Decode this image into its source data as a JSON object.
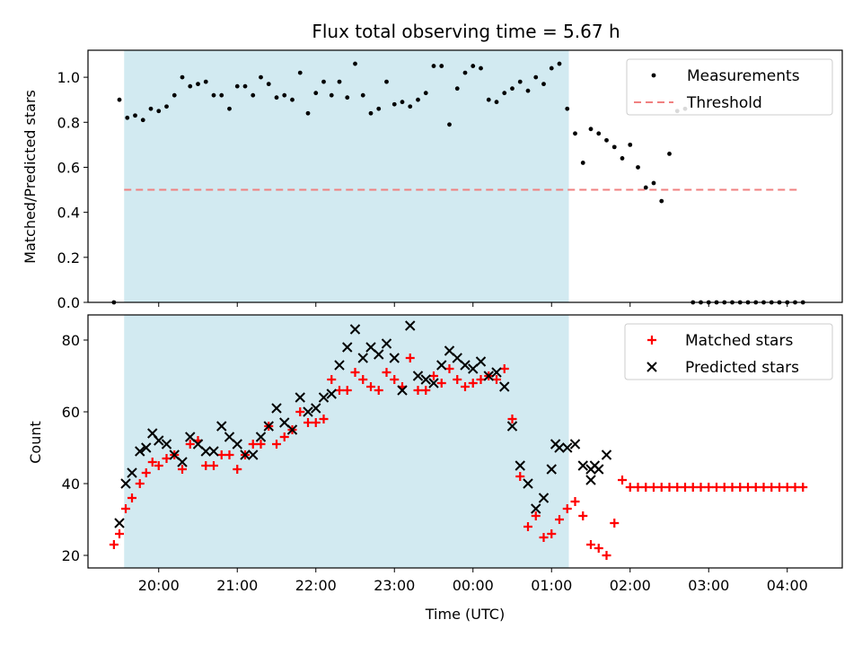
{
  "chart_data": {
    "title": "Flux total observing time = 5.67 h",
    "xlabel": "Time (UTC)",
    "x_ticks": [
      "20:00",
      "21:00",
      "22:00",
      "23:00",
      "00:00",
      "01:00",
      "02:00",
      "03:00",
      "04:00"
    ],
    "x_tick_hours": [
      0.5,
      1.5,
      2.5,
      3.5,
      4.5,
      5.5,
      6.5,
      7.5,
      8.5
    ],
    "xlim": [
      -0.4,
      9.2
    ],
    "shaded_region": {
      "start": 0.06,
      "end": 5.72,
      "color": "#add8e6"
    },
    "panels": [
      {
        "type": "scatter",
        "ylabel": "Matched/Predicted stars",
        "ylim": [
          0,
          1.12
        ],
        "y_ticks": [
          "0.0",
          "0.2",
          "0.4",
          "0.6",
          "0.8",
          "1.0"
        ],
        "y_tick_values": [
          0,
          0.2,
          0.4,
          0.6,
          0.8,
          1.0
        ],
        "threshold": {
          "label": "Threshold",
          "value": 0.5,
          "x_start": 0.06,
          "x_end": 8.65,
          "color": "#f08080"
        },
        "legend": {
          "position": "upper right",
          "entries": [
            "Measurements",
            "Threshold"
          ]
        },
        "series": [
          {
            "name": "Measurements",
            "marker": "dot",
            "color": "#000000",
            "x": [
              -0.07,
              0.0,
              0.1,
              0.2,
              0.3,
              0.4,
              0.5,
              0.6,
              0.7,
              0.8,
              0.9,
              1.0,
              1.1,
              1.2,
              1.3,
              1.4,
              1.5,
              1.6,
              1.7,
              1.8,
              1.9,
              2.0,
              2.1,
              2.2,
              2.3,
              2.4,
              2.5,
              2.6,
              2.7,
              2.8,
              2.9,
              3.0,
              3.1,
              3.2,
              3.3,
              3.4,
              3.5,
              3.6,
              3.7,
              3.8,
              3.9,
              4.0,
              4.1,
              4.2,
              4.3,
              4.4,
              4.5,
              4.6,
              4.7,
              4.8,
              4.9,
              5.0,
              5.1,
              5.2,
              5.3,
              5.4,
              5.5,
              5.6,
              5.7,
              5.8,
              5.9,
              6.0,
              6.1,
              6.2,
              6.3,
              6.4,
              6.5,
              6.6,
              6.7,
              6.8,
              6.9,
              7.0,
              7.1,
              7.2,
              7.3,
              7.4,
              7.5,
              7.6,
              7.7,
              7.8,
              7.9,
              8.0,
              8.1,
              8.2,
              8.3,
              8.4,
              8.5,
              8.6,
              8.7
            ],
            "y": [
              0.0,
              0.9,
              0.82,
              0.83,
              0.81,
              0.86,
              0.85,
              0.87,
              0.92,
              1.0,
              0.96,
              0.97,
              0.98,
              0.92,
              0.92,
              0.86,
              0.96,
              0.96,
              0.92,
              1.0,
              0.97,
              0.91,
              0.92,
              0.9,
              1.02,
              0.84,
              0.93,
              0.98,
              0.92,
              0.98,
              0.91,
              1.06,
              0.92,
              0.84,
              0.86,
              0.98,
              0.88,
              0.89,
              0.87,
              0.9,
              0.93,
              1.05,
              1.05,
              0.79,
              0.95,
              1.02,
              1.05,
              1.04,
              0.9,
              0.89,
              0.93,
              0.95,
              0.98,
              0.94,
              1.0,
              0.97,
              1.04,
              1.06,
              0.86,
              0.75,
              0.62,
              0.77,
              0.75,
              0.72,
              0.69,
              0.64,
              0.7,
              0.6,
              0.51,
              0.53,
              0.45,
              0.66,
              0.85,
              0.86,
              0.0,
              0.0,
              0.0,
              0.0,
              0.0,
              0.0,
              0.0,
              0.0,
              0.0,
              0.0,
              0.0,
              0.0,
              0.0,
              0.0,
              0.0
            ]
          }
        ]
      },
      {
        "type": "scatter",
        "ylabel": "Count",
        "ylim": [
          16.5,
          87
        ],
        "y_ticks": [
          "20",
          "40",
          "60",
          "80"
        ],
        "y_tick_values": [
          20,
          40,
          60,
          80
        ],
        "legend": {
          "position": "upper right",
          "entries": [
            "Matched stars",
            "Predicted stars"
          ]
        },
        "series": [
          {
            "name": "Matched stars",
            "marker": "plus",
            "color": "#ff0000",
            "x": [
              -0.07,
              0.0,
              0.08,
              0.16,
              0.26,
              0.34,
              0.42,
              0.5,
              0.6,
              0.7,
              0.8,
              0.9,
              1.0,
              1.1,
              1.2,
              1.3,
              1.4,
              1.5,
              1.6,
              1.7,
              1.8,
              1.9,
              2.0,
              2.1,
              2.2,
              2.3,
              2.4,
              2.5,
              2.6,
              2.7,
              2.8,
              2.9,
              3.0,
              3.1,
              3.2,
              3.3,
              3.4,
              3.5,
              3.6,
              3.7,
              3.8,
              3.9,
              4.0,
              4.1,
              4.2,
              4.3,
              4.4,
              4.5,
              4.6,
              4.7,
              4.8,
              4.9,
              5.0,
              5.1,
              5.2,
              5.3,
              5.4,
              5.5,
              5.6,
              5.7,
              5.8,
              5.9,
              6.0,
              6.1,
              6.2,
              6.3,
              6.4,
              6.5,
              6.6,
              6.7,
              6.8,
              6.9,
              7.0,
              7.1,
              7.2,
              7.3,
              7.4,
              7.5,
              7.6,
              7.7,
              7.8,
              7.9,
              8.0,
              8.1,
              8.2,
              8.3,
              8.4,
              8.5,
              8.6,
              8.7
            ],
            "y": [
              23,
              26,
              33,
              36,
              40,
              43,
              46,
              45,
              47,
              48,
              44,
              51,
              52,
              45,
              45,
              48,
              48,
              44,
              48,
              51,
              51,
              56,
              51,
              53,
              55,
              60,
              57,
              57,
              58,
              69,
              66,
              66,
              71,
              69,
              67,
              66,
              71,
              69,
              67,
              75,
              66,
              66,
              70,
              68,
              72,
              69,
              67,
              68,
              69,
              70,
              69,
              72,
              58,
              42,
              28,
              31,
              25,
              26,
              30,
              33,
              35,
              31,
              23,
              22,
              20,
              29,
              41,
              39,
              39,
              39,
              39,
              39,
              39,
              39,
              39,
              39,
              39,
              39,
              39,
              39,
              39,
              39,
              39,
              39,
              39,
              39,
              39,
              39,
              39,
              39
            ]
          },
          {
            "name": "Predicted stars",
            "marker": "x",
            "color": "#000000",
            "x": [
              0.0,
              0.08,
              0.16,
              0.26,
              0.34,
              0.42,
              0.5,
              0.6,
              0.7,
              0.8,
              0.9,
              1.0,
              1.1,
              1.2,
              1.3,
              1.4,
              1.5,
              1.6,
              1.7,
              1.8,
              1.9,
              2.0,
              2.1,
              2.2,
              2.3,
              2.4,
              2.5,
              2.6,
              2.7,
              2.8,
              2.9,
              3.0,
              3.1,
              3.2,
              3.3,
              3.4,
              3.5,
              3.6,
              3.7,
              3.8,
              3.9,
              4.0,
              4.1,
              4.2,
              4.3,
              4.4,
              4.5,
              4.6,
              4.7,
              4.8,
              4.9,
              5.0,
              5.1,
              5.2,
              5.3,
              5.4,
              5.5,
              5.6,
              5.7,
              5.8,
              5.9,
              6.0,
              6.1,
              6.2
            ],
            "y": [
              29,
              40,
              43,
              49,
              50,
              54,
              52,
              51,
              48,
              46,
              53,
              51,
              49,
              49,
              56,
              53,
              51,
              48,
              48,
              53,
              56,
              61,
              57,
              55,
              64,
              60,
              61,
              64,
              65,
              73,
              78,
              83,
              75,
              78,
              76,
              79,
              75,
              66,
              84,
              70,
              69,
              68,
              73,
              77,
              75,
              73,
              72,
              74,
              70,
              71,
              67,
              56,
              45,
              40,
              33,
              36,
              44,
              50,
              50,
              51,
              45,
              41,
              44,
              48
            ],
            "y_note": "",
            "x_extra": [
              5.55,
              6.0,
              6.05
            ],
            "y_extra": [
              51,
              44,
              45
            ]
          }
        ]
      }
    ]
  }
}
